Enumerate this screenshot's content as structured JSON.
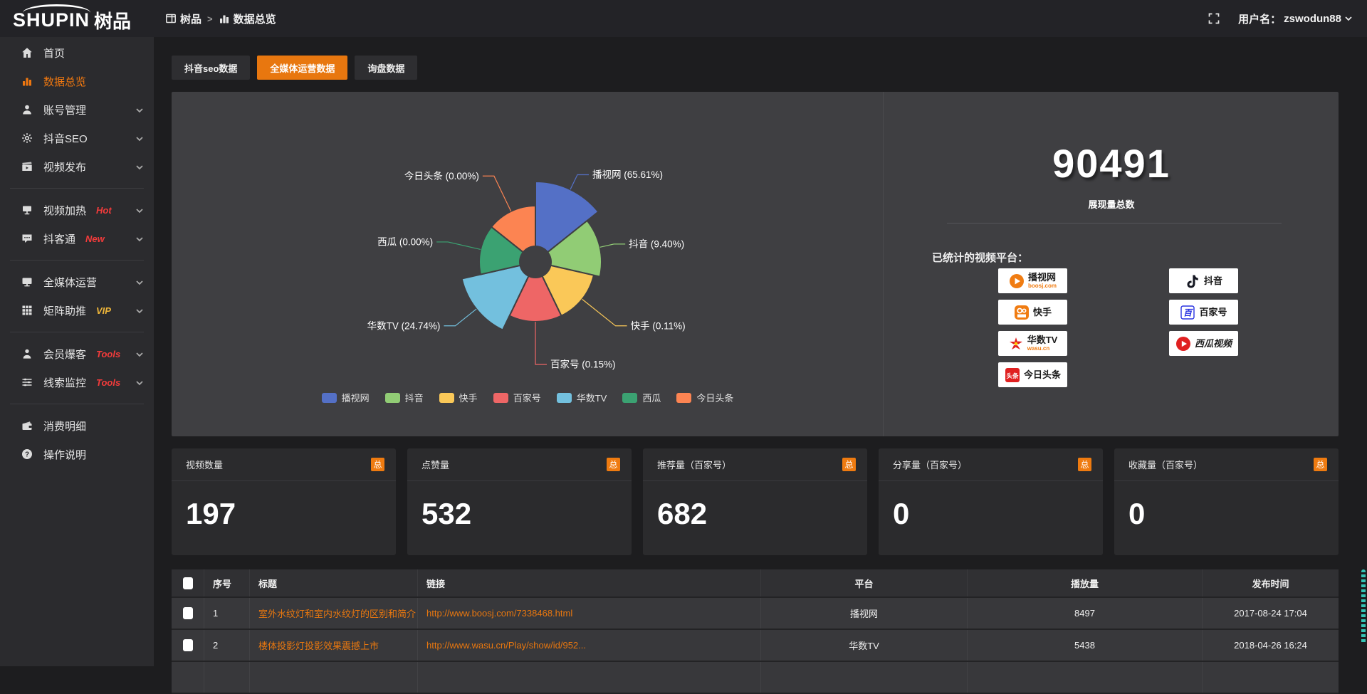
{
  "colors": {
    "accent": "#ee7710",
    "tab_active": "#e8770f",
    "hot_red": "#f43b3b",
    "vip_yellow": "#f0b73a",
    "panel_bg": "#3f3f42"
  },
  "topbar": {
    "logo_en": "SHUPIN",
    "logo_cn": "树品",
    "breadcrumb": {
      "root": "树品",
      "separator": ">",
      "current": "数据总览"
    },
    "user_label": "用户名：",
    "username": "zswodun88"
  },
  "sidebar": {
    "items": [
      {
        "key": "home",
        "label": "首页",
        "icon": "home-icon",
        "active": false,
        "chevron": false,
        "badge": "",
        "divider_after": false
      },
      {
        "key": "data-overview",
        "label": "数据总览",
        "icon": "bar-chart-icon",
        "active": true,
        "chevron": false,
        "badge": "",
        "divider_after": false
      },
      {
        "key": "account-manage",
        "label": "账号管理",
        "icon": "user-icon",
        "active": false,
        "chevron": true,
        "badge": "",
        "divider_after": false
      },
      {
        "key": "douyin-seo",
        "label": "抖音SEO",
        "icon": "gear-icon",
        "active": false,
        "chevron": true,
        "badge": "",
        "divider_after": false
      },
      {
        "key": "video-publish",
        "label": "视频发布",
        "icon": "video-icon",
        "active": false,
        "chevron": true,
        "badge": "",
        "divider_after": true
      },
      {
        "key": "video-heat",
        "label": "视频加热",
        "icon": "screen-icon",
        "active": false,
        "chevron": true,
        "badge": "Hot",
        "badge_color": "#f43b3b",
        "divider_after": false
      },
      {
        "key": "douketong",
        "label": "抖客通",
        "icon": "chat-icon",
        "active": false,
        "chevron": true,
        "badge": "New",
        "badge_color": "#f43b3b",
        "divider_after": true
      },
      {
        "key": "media-ops",
        "label": "全媒体运营",
        "icon": "monitor-icon",
        "active": false,
        "chevron": true,
        "badge": "",
        "divider_after": false
      },
      {
        "key": "matrix-boost",
        "label": "矩阵助推",
        "icon": "grid-icon",
        "active": false,
        "chevron": true,
        "badge": "VIP",
        "badge_color": "#f0b73a",
        "divider_after": true
      },
      {
        "key": "member-baoke",
        "label": "会员爆客",
        "icon": "person-icon",
        "active": false,
        "chevron": true,
        "badge": "Tools",
        "badge_color": "#f43b3b",
        "divider_after": false
      },
      {
        "key": "clue-monitor",
        "label": "线索监控",
        "icon": "sliders-icon",
        "active": false,
        "chevron": true,
        "badge": "Tools",
        "badge_color": "#f43b3b",
        "divider_after": true
      },
      {
        "key": "consume-detail",
        "label": "消费明细",
        "icon": "wallet-icon",
        "active": false,
        "chevron": false,
        "badge": "",
        "divider_after": false
      },
      {
        "key": "instructions",
        "label": "操作说明",
        "icon": "question-icon",
        "active": false,
        "chevron": false,
        "badge": "",
        "divider_after": false
      }
    ]
  },
  "tabs": [
    {
      "key": "douyin-seo-data",
      "label": "抖音seo数据",
      "active": false
    },
    {
      "key": "media-ops-data",
      "label": "全媒体运营数据",
      "active": true
    },
    {
      "key": "inquiry-data",
      "label": "询盘数据",
      "active": false
    }
  ],
  "chart_data": {
    "type": "pie",
    "style": "nightingale-rose",
    "legend_position": "bottom",
    "inner_radius": 22,
    "series": [
      {
        "name": "播视网",
        "percent": 65.61,
        "label": "播视网 (65.61%)",
        "color": "#5470c6",
        "radius": 113,
        "label_line": 23
      },
      {
        "name": "抖音",
        "percent": 9.4,
        "label": "抖音 (9.40%)",
        "color": "#91cc75",
        "radius": 93,
        "label_line": 20
      },
      {
        "name": "快手",
        "percent": 0.11,
        "label": "快手 (0.11%)",
        "color": "#fac858",
        "radius": 84,
        "label_line": 60
      },
      {
        "name": "百家号",
        "percent": 0.15,
        "label": "百家号 (0.15%)",
        "color": "#ee6666",
        "radius": 84,
        "label_line": 60
      },
      {
        "name": "华数TV",
        "percent": 24.74,
        "label": "华数TV (24.74%)",
        "color": "#73c0de",
        "radius": 106,
        "label_line": 38
      },
      {
        "name": "西瓜",
        "percent": 0.0,
        "label": "西瓜 (0.00%)",
        "color": "#3ba272",
        "radius": 79,
        "label_line": 47
      },
      {
        "name": "今日头条",
        "percent": 0.0,
        "label": "今日头条 (0.00%)",
        "color": "#fc8452",
        "radius": 79,
        "label_line": 55
      }
    ]
  },
  "summary": {
    "total_value": "90491",
    "total_label": "展现量总数",
    "platforms_label": "已统计的视频平台：",
    "badges_left": [
      {
        "key": "boosj",
        "name": "播视网",
        "sub": "boosj.com",
        "sub_color": "#f07c12"
      },
      {
        "key": "kuaishou",
        "name": "快手",
        "sub": ""
      },
      {
        "key": "wasu",
        "name": "华数TV",
        "sub": "wasu.cn",
        "sub_color": "#f07c12"
      },
      {
        "key": "toutiao",
        "name": "今日头条",
        "sub": ""
      }
    ],
    "badges_right": [
      {
        "key": "douyin",
        "name": "抖音",
        "sub": ""
      },
      {
        "key": "baijiahao",
        "name": "百家号",
        "sub": ""
      },
      {
        "key": "xigua",
        "name": "西瓜视频",
        "sub": ""
      }
    ]
  },
  "stat_cards": [
    {
      "label": "视频数量",
      "badge": "总",
      "value": "197"
    },
    {
      "label": "点赞量",
      "badge": "总",
      "value": "532"
    },
    {
      "label": "推荐量（百家号）",
      "badge": "总",
      "value": "682"
    },
    {
      "label": "分享量（百家号）",
      "badge": "总",
      "value": "0"
    },
    {
      "label": "收藏量（百家号）",
      "badge": "总",
      "value": "0"
    }
  ],
  "table": {
    "headers": {
      "index": "序号",
      "title": "标题",
      "link": "链接",
      "platform": "平台",
      "views": "播放量",
      "time": "发布时间"
    },
    "rows": [
      {
        "index": "1",
        "title": "室外水纹灯和室内水纹灯的区别和简介",
        "link": "http://www.boosj.com/7338468.html",
        "platform": "播视网",
        "views": "8497",
        "time": "2017-08-24 17:04"
      },
      {
        "index": "2",
        "title": "楼体投影灯投影效果震撼上市",
        "link": "http://www.wasu.cn/Play/show/id/952...",
        "platform": "华数TV",
        "views": "5438",
        "time": "2018-04-26 16:24"
      }
    ]
  }
}
